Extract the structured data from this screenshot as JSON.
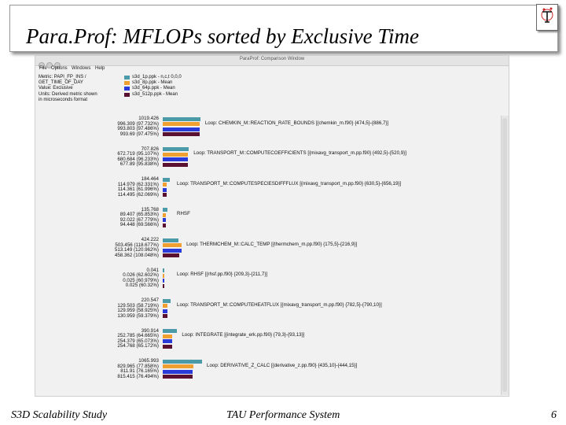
{
  "slide": {
    "title": "Para.Prof: MFLOPs sorted by Exclusive Time",
    "footer_left": "S3D Scalability Study",
    "footer_center": "TAU Performance System",
    "page_number": "6"
  },
  "window": {
    "title": "ParaProf: Comparison Window",
    "menu": [
      "File",
      "Options",
      "Windows",
      "Help"
    ]
  },
  "legend": {
    "info": [
      "Metric: PAPI_FP_INS /",
      "GET_TIME_OF_DAY",
      "Value: Exclusive",
      "Units: Derived metric shown",
      "in microseconds format"
    ],
    "items": [
      {
        "name": "s3d_1p.ppk - n,c,t 0,0,0",
        "color": "#4a9aa8"
      },
      {
        "name": "s3d_8p.ppk - Mean",
        "color": "#f0a030"
      },
      {
        "name": "s3d_64p.ppk - Mean",
        "color": "#2a3ad8"
      },
      {
        "name": "s3d_512p.ppk - Mean",
        "color": "#5a1030"
      }
    ]
  },
  "groups": [
    {
      "label": "Loop: CHEMKIN_M::REACTION_RATE_BOUNDS [{chemkin_m.f90} {474,5}-{886,7}]",
      "values": [
        "1019.426",
        "996.309 (97.732%)",
        "993.803 (97.486%)",
        "993.69 (97.475%)"
      ],
      "amounts": [
        1019.426,
        996.309,
        993.803,
        993.69
      ]
    },
    {
      "label": "Loop: TRANSPORT_M::COMPUTECOEFFICIENTS [{mixavg_transport_m.pp.f90} {492,5}-{520,9}]",
      "values": [
        "707.826",
        "672.719 (95.107%)",
        "680.684 (96.233%)",
        "677.89 (95.838%)"
      ],
      "amounts": [
        707.826,
        672.719,
        680.684,
        677.89
      ]
    },
    {
      "label": "Loop: TRANSPORT_M::COMPUTESPECIESDIFFFLUX [{mixavg_transport_m.pp.f90} {630,5}-{656,19}]",
      "values": [
        "184.464",
        "114.979 (62.331%)",
        "114.361 (61.996%)",
        "114.495 (62.069%)"
      ],
      "amounts": [
        184.464,
        114.979,
        114.361,
        114.495
      ]
    },
    {
      "label": "RHSF",
      "values": [
        "135.768",
        "89.407 (65.853%)",
        "92.022 (67.779%)",
        "94.448 (69.566%)"
      ],
      "amounts": [
        135.768,
        89.407,
        92.022,
        94.448
      ]
    },
    {
      "label": "Loop: THERMCHEM_M::CALC_TEMP [{thermchem_m.pp.f90} {175,5}-{216,9}]",
      "values": [
        "424.222",
        "503.456 (118.677%)",
        "513.149 (120.962%)",
        "458.362 (108.048%)"
      ],
      "amounts": [
        424.222,
        503.456,
        513.149,
        458.362
      ]
    },
    {
      "label": "Loop: RHSF [{rhsf.pp.f90} {209,3}-{211,7}]",
      "values": [
        "0.041",
        "0.026 (62.602%)",
        "0.025 (60.979%)",
        "0.025 (60.32%)"
      ],
      "amounts": [
        0.041,
        0.026,
        0.025,
        0.025
      ]
    },
    {
      "label": "Loop: TRANSPORT_M::COMPUTEHEATFLUX [{mixavg_transport_m.pp.f90} {782,5}-{790,10}]",
      "values": [
        "220.547",
        "129.503 (58.719%)",
        "129.959 (58.925%)",
        "130.959 (59.379%)"
      ],
      "amounts": [
        220.547,
        129.503,
        129.959,
        130.959
      ]
    },
    {
      "label": "Loop: INTEGRATE [{integrate_erk.pp.f90} {79,3}-{93,13}]",
      "values": [
        "390.914",
        "252.785 (64.665%)",
        "254.379 (65.073%)",
        "254.768 (65.172%)"
      ],
      "amounts": [
        390.914,
        252.785,
        254.379,
        254.768
      ]
    },
    {
      "label": "Loop: DERIVATIVE_Z_CALC [{derivative_z.pp.f90} {435,10}-{444,15}]",
      "values": [
        "1065.993",
        "829.965 (77.858%)",
        "811.91 (76.165%)",
        "815.415 (76.494%)"
      ],
      "amounts": [
        1065.993,
        829.965,
        811.91,
        815.415
      ]
    }
  ]
}
